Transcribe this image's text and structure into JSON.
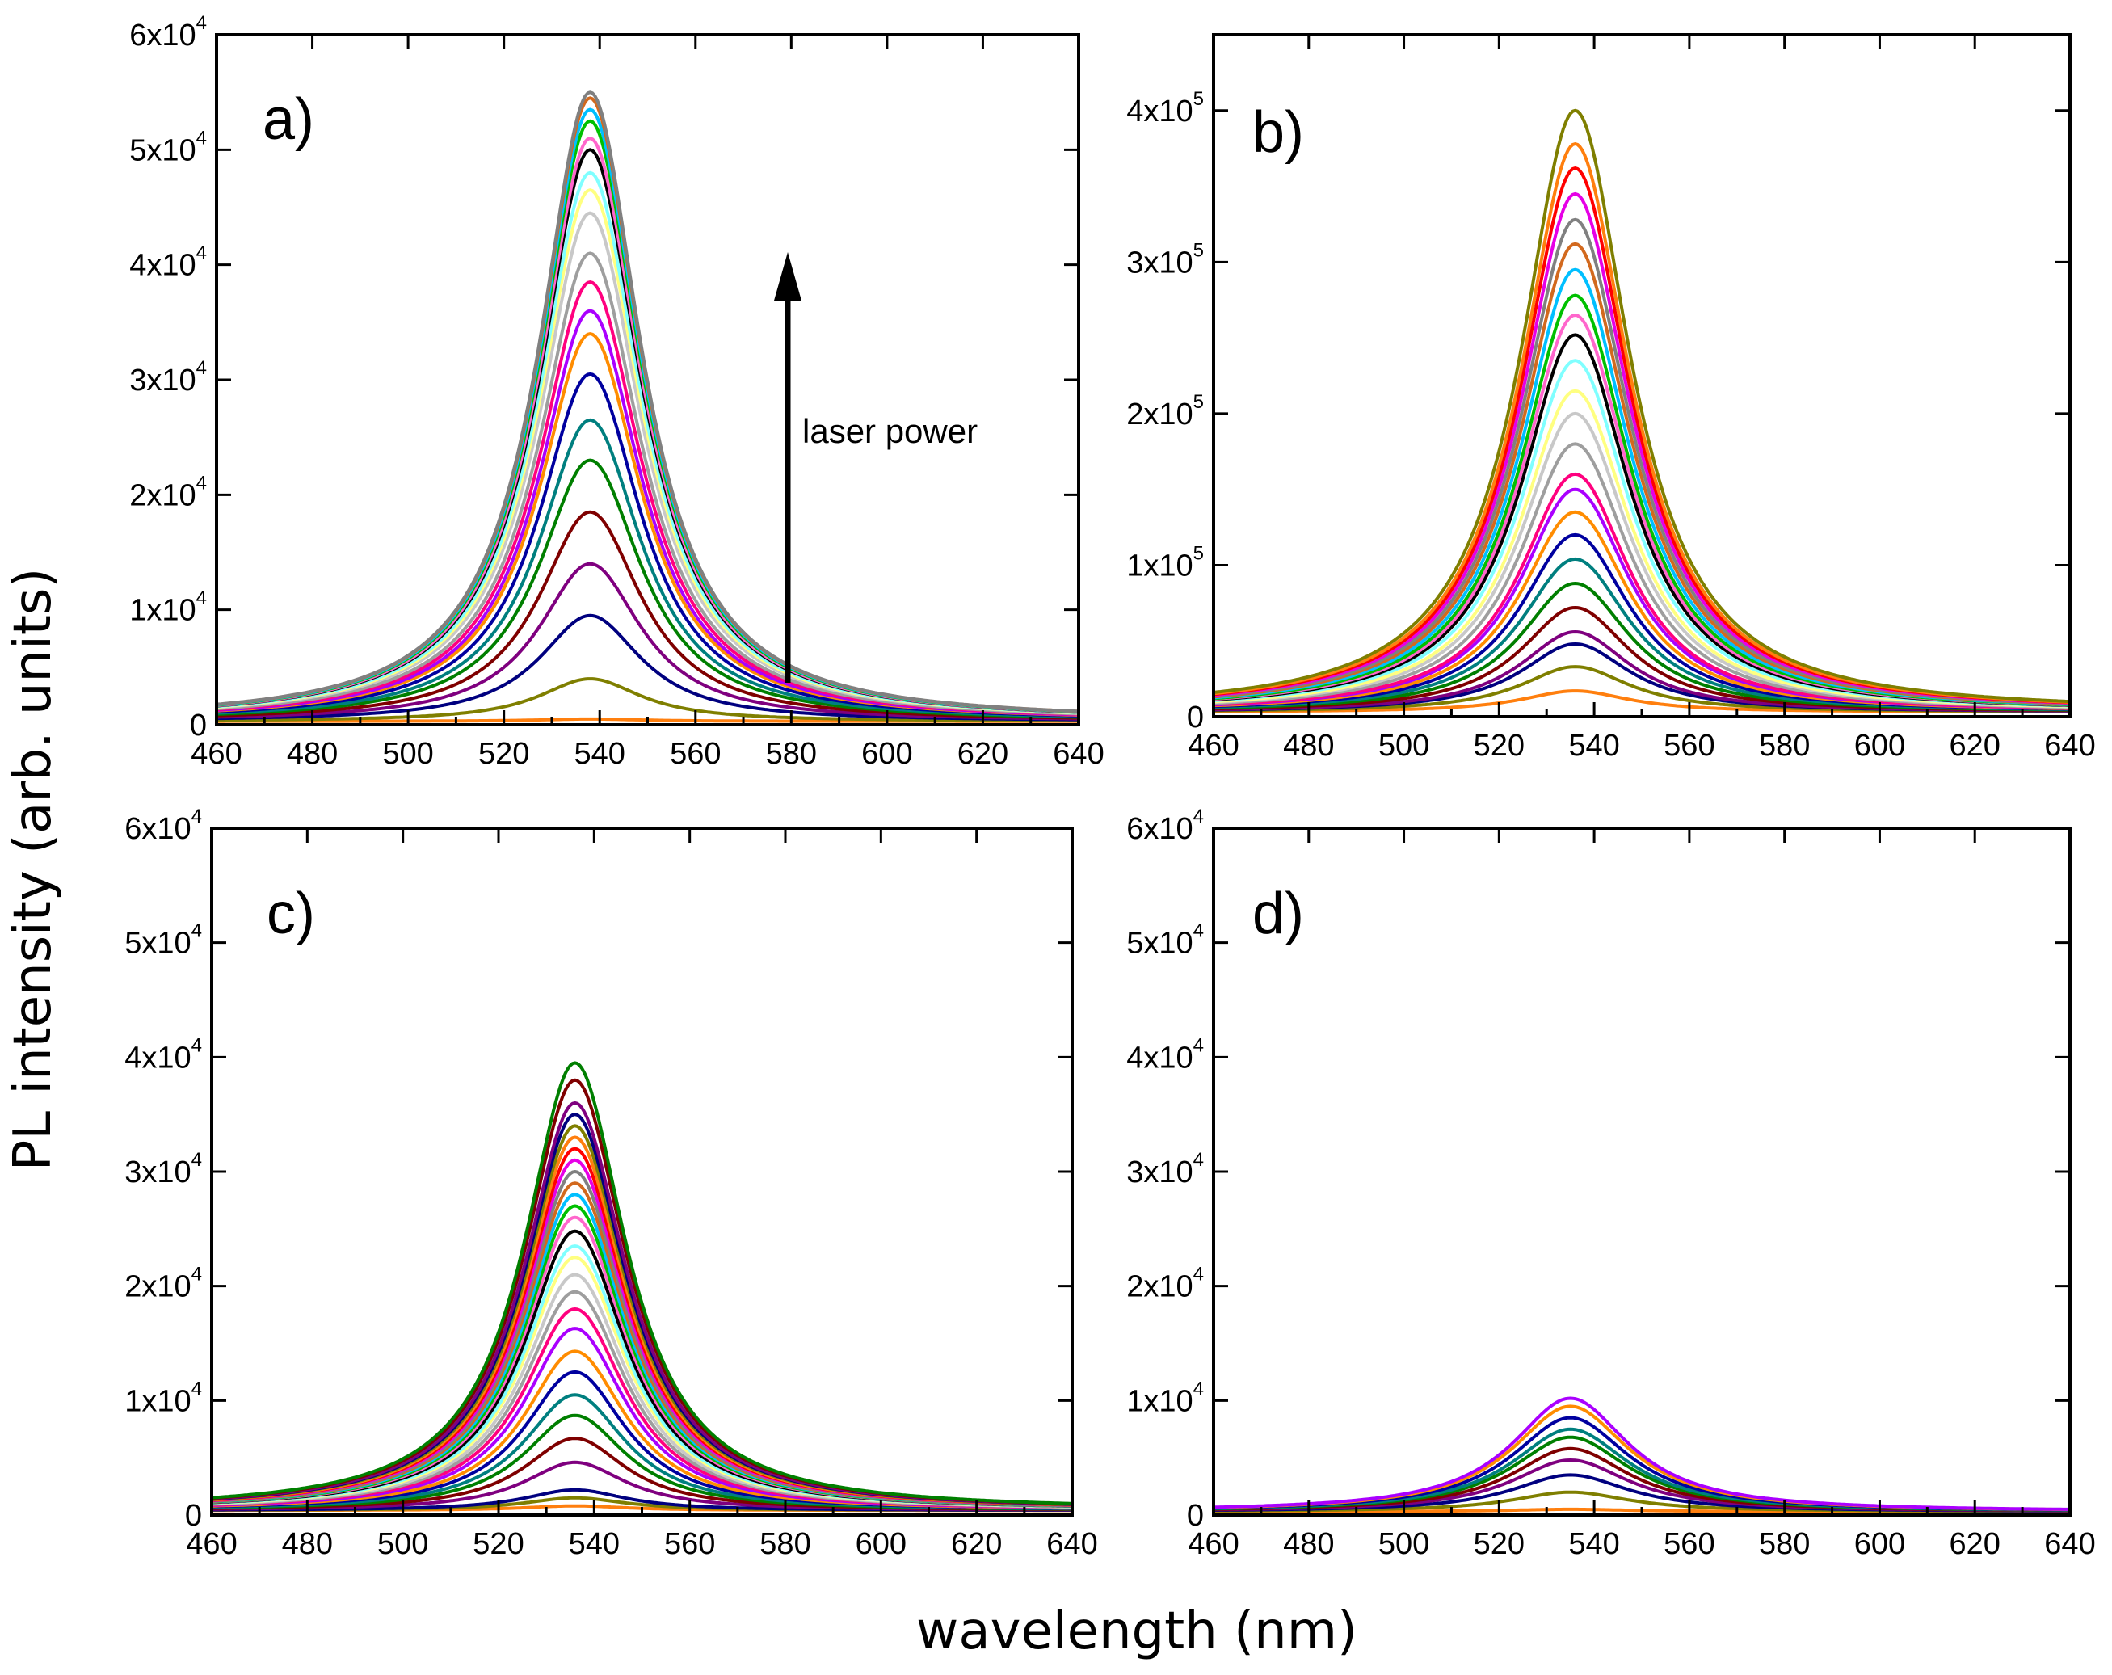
{
  "figure": {
    "ylabel": "PL intensity (arb. units)",
    "xlabel": "wavelength (nm)"
  },
  "palette": [
    "#ff7f0e",
    "#7f7f00",
    "#00007f",
    "#7f007f",
    "#7f0000",
    "#007f00",
    "#007f7f",
    "#00009f",
    "#ff8c00",
    "#aa00ff",
    "#ff007f",
    "#9e9e9e",
    "#c8c8c8",
    "#ffff80",
    "#80ffff",
    "#000000",
    "#ff66cc",
    "#00c000",
    "#00bfff",
    "#d2691e",
    "#808080",
    "#e600e6",
    "#ff0000"
  ],
  "chart_data": [
    {
      "panel": "a",
      "type": "line",
      "label": "a)",
      "annotation": "laser power",
      "xlim": [
        460,
        640
      ],
      "ylim": [
        0,
        60000
      ],
      "xticks": [
        "460",
        "480",
        "500",
        "520",
        "540",
        "560",
        "580",
        "600",
        "620",
        "640"
      ],
      "yticks": [
        {
          "value": 0,
          "mantissa": "0",
          "exponent": ""
        },
        {
          "value": 10000,
          "mantissa": "1x10",
          "exponent": "4"
        },
        {
          "value": 20000,
          "mantissa": "2x10",
          "exponent": "4"
        },
        {
          "value": 30000,
          "mantissa": "3x10",
          "exponent": "4"
        },
        {
          "value": 40000,
          "mantissa": "4x10",
          "exponent": "4"
        },
        {
          "value": 50000,
          "mantissa": "5x10",
          "exponent": "4"
        },
        {
          "value": 60000,
          "mantissa": "6x10",
          "exponent": "4"
        }
      ],
      "center_nm": 538,
      "fwhm_nm": 26,
      "baseline": 300,
      "peaks": [
        500,
        4000,
        9500,
        14000,
        18500,
        23000,
        26500,
        30500,
        34000,
        36000,
        38500,
        41000,
        44500,
        46500,
        48000,
        50000,
        51000,
        52500,
        53500,
        54500,
        55000
      ]
    },
    {
      "panel": "b",
      "type": "line",
      "label": "b)",
      "xlim": [
        460,
        640
      ],
      "ylim": [
        0,
        450000
      ],
      "xticks": [
        "460",
        "480",
        "500",
        "520",
        "540",
        "560",
        "580",
        "600",
        "620",
        "640"
      ],
      "yticks": [
        {
          "value": 0,
          "mantissa": "0",
          "exponent": ""
        },
        {
          "value": 100000,
          "mantissa": "1x10",
          "exponent": "5"
        },
        {
          "value": 200000,
          "mantissa": "2x10",
          "exponent": "5"
        },
        {
          "value": 300000,
          "mantissa": "3x10",
          "exponent": "5"
        },
        {
          "value": 400000,
          "mantissa": "4x10",
          "exponent": "5"
        }
      ],
      "center_nm": 536,
      "fwhm_nm": 28,
      "baseline": 3000,
      "peaks": [
        17000,
        33000,
        48000,
        56000,
        72000,
        88000,
        104000,
        120000,
        135000,
        150000,
        160000,
        180000,
        200000,
        215000,
        235000,
        252000,
        265000,
        278000,
        295000,
        312000,
        328000,
        345000,
        362000,
        378000,
        400000
      ]
    },
    {
      "panel": "c",
      "type": "line",
      "label": "c)",
      "xlim": [
        460,
        640
      ],
      "ylim": [
        0,
        60000
      ],
      "xticks": [
        "460",
        "480",
        "500",
        "520",
        "540",
        "560",
        "580",
        "600",
        "620",
        "640"
      ],
      "yticks": [
        {
          "value": 0,
          "mantissa": "0",
          "exponent": ""
        },
        {
          "value": 10000,
          "mantissa": "1x10",
          "exponent": "4"
        },
        {
          "value": 20000,
          "mantissa": "2x10",
          "exponent": "4"
        },
        {
          "value": 30000,
          "mantissa": "3x10",
          "exponent": "4"
        },
        {
          "value": 40000,
          "mantissa": "4x10",
          "exponent": "4"
        },
        {
          "value": 50000,
          "mantissa": "5x10",
          "exponent": "4"
        },
        {
          "value": 60000,
          "mantissa": "6x10",
          "exponent": "4"
        }
      ],
      "center_nm": 536,
      "fwhm_nm": 26,
      "baseline": 400,
      "peaks": [
        800,
        1500,
        2200,
        4600,
        6700,
        8700,
        10500,
        12500,
        14300,
        16300,
        18000,
        19500,
        21000,
        22500,
        23500,
        24800,
        26000,
        27000,
        28000,
        29000,
        30000,
        31000,
        32000,
        33000,
        34000,
        35000,
        36000,
        38000,
        39500
      ]
    },
    {
      "panel": "d",
      "type": "line",
      "label": "d)",
      "xlim": [
        460,
        640
      ],
      "ylim": [
        0,
        60000
      ],
      "xticks": [
        "460",
        "480",
        "500",
        "520",
        "540",
        "560",
        "580",
        "600",
        "620",
        "640"
      ],
      "yticks": [
        {
          "value": 0,
          "mantissa": "0",
          "exponent": ""
        },
        {
          "value": 10000,
          "mantissa": "1x10",
          "exponent": "4"
        },
        {
          "value": 20000,
          "mantissa": "2x10",
          "exponent": "4"
        },
        {
          "value": 30000,
          "mantissa": "3x10",
          "exponent": "4"
        },
        {
          "value": 40000,
          "mantissa": "4x10",
          "exponent": "4"
        },
        {
          "value": 50000,
          "mantissa": "5x10",
          "exponent": "4"
        },
        {
          "value": 60000,
          "mantissa": "6x10",
          "exponent": "4"
        }
      ],
      "center_nm": 535,
      "fwhm_nm": 30,
      "baseline": 300,
      "peaks": [
        500,
        2000,
        3500,
        4800,
        5800,
        6800,
        7500,
        8500,
        9500,
        10200
      ]
    }
  ]
}
